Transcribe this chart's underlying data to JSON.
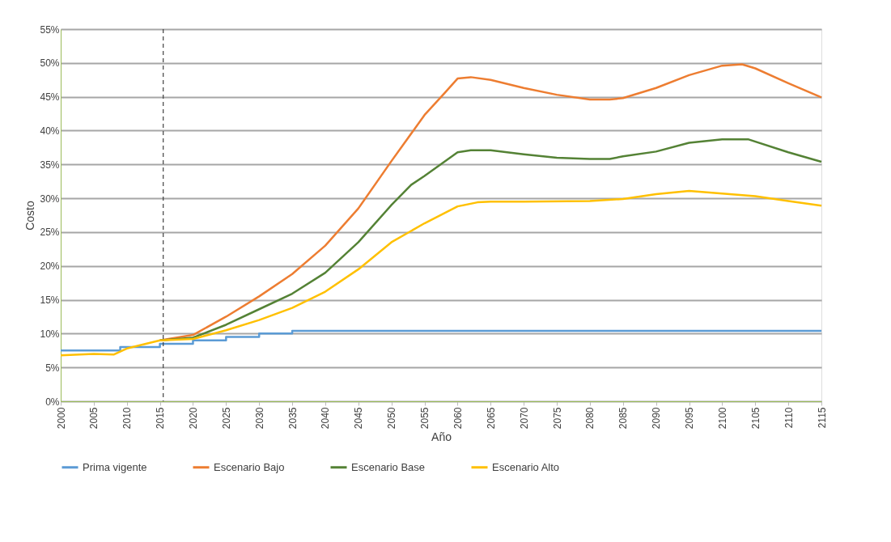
{
  "chart_data": {
    "type": "line",
    "xlabel": "Año",
    "ylabel": "Costo",
    "xlim": [
      2000,
      2115
    ],
    "xticks": [
      2000,
      2005,
      2010,
      2015,
      2020,
      2025,
      2030,
      2035,
      2040,
      2045,
      2050,
      2055,
      2060,
      2065,
      2070,
      2075,
      2080,
      2085,
      2090,
      2095,
      2100,
      2105,
      2110,
      2115
    ],
    "ylim": [
      0,
      55
    ],
    "yticks": [
      {
        "value": 0,
        "label": "0%"
      },
      {
        "value": 5,
        "label": "5%"
      },
      {
        "value": 10,
        "label": "10%"
      },
      {
        "value": 15,
        "label": "15%"
      },
      {
        "value": 20,
        "label": "20%"
      },
      {
        "value": 25,
        "label": "25%"
      },
      {
        "value": 30,
        "label": "30%"
      },
      {
        "value": 35,
        "label": "35%"
      },
      {
        "value": 40,
        "label": "40%"
      },
      {
        "value": 45,
        "label": "45%"
      },
      {
        "value": 50,
        "label": "50%"
      },
      {
        "value": 55,
        "label": "55%"
      }
    ],
    "grid": "y",
    "legend": "bottom",
    "line_style": "solid",
    "ref_lines": [
      {
        "axis": "x",
        "value": 2015.5,
        "line_style": "dashed",
        "color": "#404040"
      }
    ],
    "series": [
      {
        "name": "Prima vigente",
        "color": "#5b9bd5",
        "type": "step",
        "x": [
          2000,
          2009,
          2015,
          2020,
          2025,
          2030,
          2035,
          2115
        ],
        "values": [
          7.5,
          8,
          8.5,
          9,
          9.5,
          10,
          10.4,
          10.4
        ]
      },
      {
        "name": "Escenario Bajo",
        "color": "#ed7d31",
        "x": [
          2015,
          2020,
          2025,
          2030,
          2035,
          2040,
          2045,
          2050,
          2055,
          2058,
          2060,
          2062,
          2065,
          2070,
          2075,
          2080,
          2083,
          2085,
          2090,
          2095,
          2100,
          2103,
          2105,
          2110,
          2115
        ],
        "values": [
          9,
          9.8,
          12.5,
          15.5,
          18.8,
          23,
          28.5,
          35.5,
          42.3,
          45.5,
          47.7,
          47.9,
          47.5,
          46.3,
          45.3,
          44.6,
          44.6,
          44.8,
          46.3,
          48.2,
          49.6,
          49.8,
          49.2,
          47,
          44.9
        ]
      },
      {
        "name": "Escenario Base",
        "color": "#548235",
        "x": [
          2015,
          2020,
          2025,
          2030,
          2035,
          2040,
          2045,
          2050,
          2053,
          2055,
          2060,
          2062,
          2065,
          2070,
          2075,
          2080,
          2083,
          2085,
          2090,
          2095,
          2100,
          2104,
          2110,
          2115
        ],
        "values": [
          9,
          9.4,
          11.3,
          13.6,
          15.9,
          19,
          23.5,
          29,
          32,
          33.3,
          36.8,
          37.1,
          37.1,
          36.5,
          36,
          35.8,
          35.8,
          36.2,
          36.9,
          38.2,
          38.7,
          38.7,
          36.8,
          35.4
        ]
      },
      {
        "name": "Escenario Alto",
        "color": "#ffc000",
        "x": [
          2000,
          2005,
          2008,
          2010,
          2015,
          2020,
          2025,
          2030,
          2035,
          2040,
          2045,
          2050,
          2055,
          2060,
          2063,
          2065,
          2070,
          2080,
          2085,
          2090,
          2095,
          2100,
          2105,
          2110,
          2115
        ],
        "values": [
          6.8,
          7,
          6.9,
          7.8,
          9,
          9.2,
          10.5,
          12,
          13.8,
          16.2,
          19.5,
          23.5,
          26.3,
          28.8,
          29.4,
          29.5,
          29.5,
          29.6,
          29.9,
          30.6,
          31.1,
          30.7,
          30.3,
          29.6,
          28.9
        ]
      }
    ]
  }
}
